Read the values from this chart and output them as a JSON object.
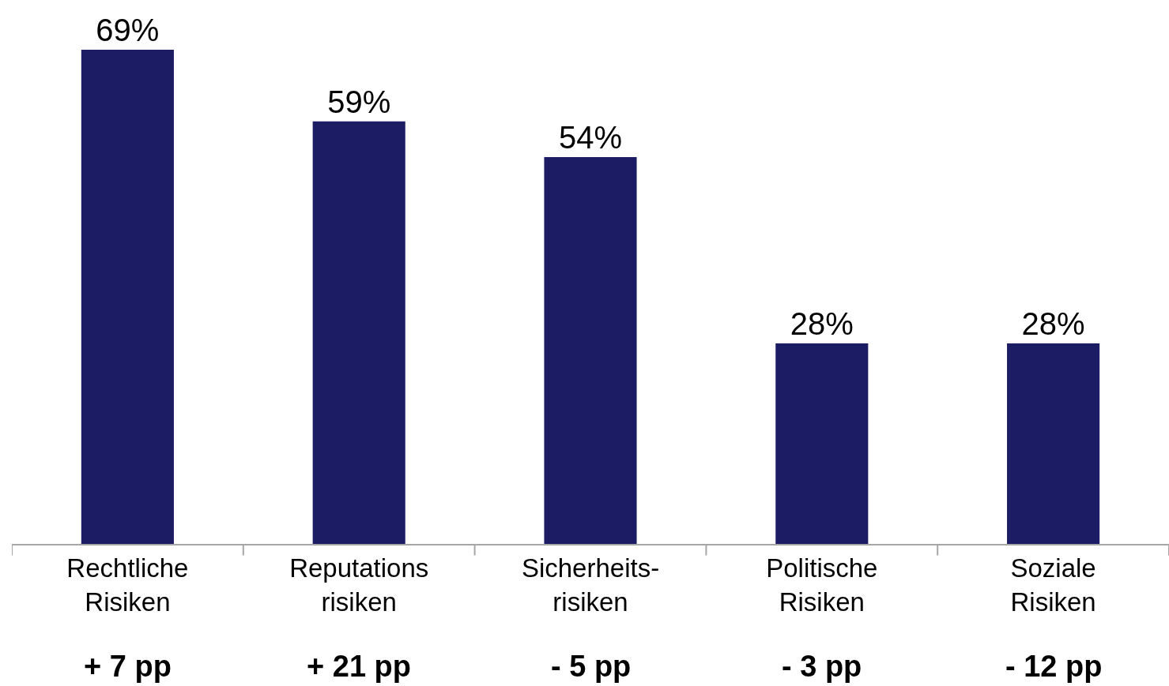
{
  "chart_data": {
    "type": "bar",
    "categories": [
      "Rechtliche\nRisiken",
      "Reputations\nrisiken",
      "Sicherheits-\nrisiken",
      "Politische\nRisiken",
      "Soziale\nRisiken"
    ],
    "values": [
      69,
      59,
      54,
      28,
      28
    ],
    "value_labels": [
      "69%",
      "59%",
      "54%",
      "28%",
      "28%"
    ],
    "color": "#1b1c63",
    "tick_labels": "x",
    "annotations": [
      "+ 7 pp",
      "+ 21 pp",
      "- 5 pp",
      "- 3 pp",
      "- 12 pp"
    ]
  }
}
